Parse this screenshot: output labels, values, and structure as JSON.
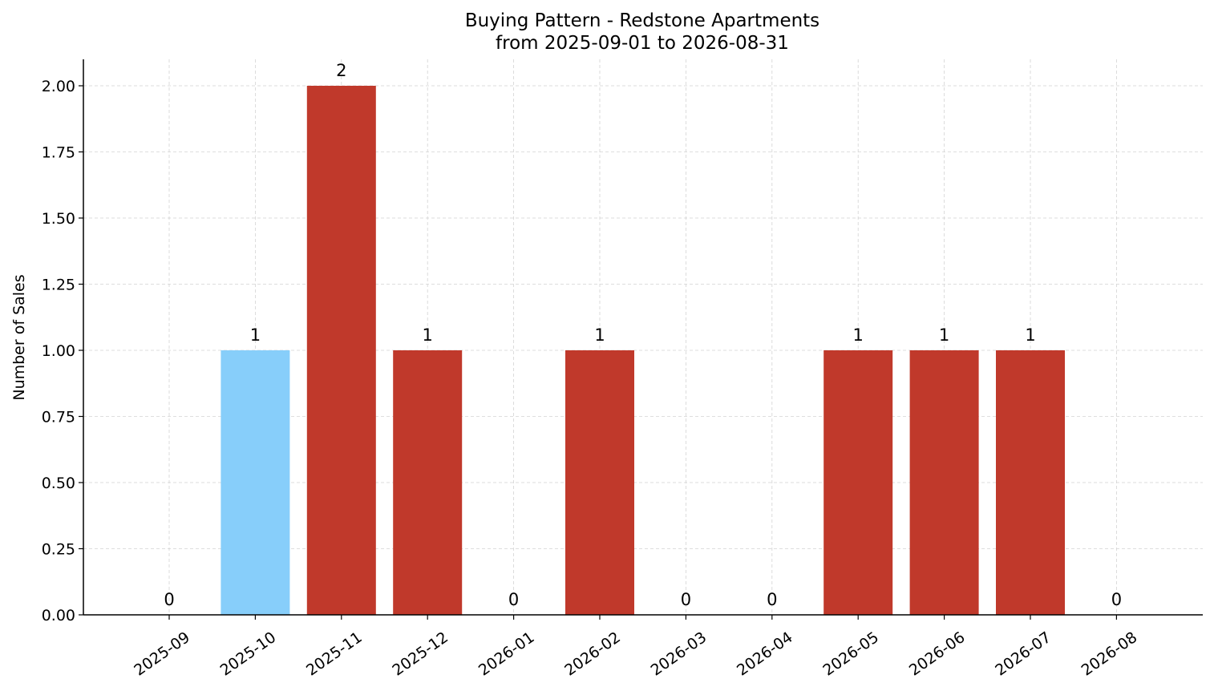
{
  "chart_data": {
    "type": "bar",
    "title": "Buying Pattern - Redstone Apartments",
    "subtitle": "from 2025-09-01 to 2026-08-31",
    "xlabel": "",
    "ylabel": "Number of Sales",
    "categories": [
      "2025-09",
      "2025-10",
      "2025-11",
      "2025-12",
      "2026-01",
      "2026-02",
      "2026-03",
      "2026-04",
      "2026-05",
      "2026-06",
      "2026-07",
      "2026-08"
    ],
    "values": [
      0,
      1,
      2,
      1,
      0,
      1,
      0,
      0,
      1,
      1,
      1,
      0
    ],
    "data_labels": [
      "0",
      "1",
      "2",
      "1",
      "0",
      "1",
      "0",
      "0",
      "1",
      "1",
      "1",
      "0"
    ],
    "bar_colors": [
      "#c0392b",
      "#87cefa",
      "#c0392b",
      "#c0392b",
      "#c0392b",
      "#c0392b",
      "#c0392b",
      "#c0392b",
      "#c0392b",
      "#c0392b",
      "#c0392b",
      "#c0392b"
    ],
    "yticks": [
      "0.00",
      "0.25",
      "0.50",
      "0.75",
      "1.00",
      "1.25",
      "1.50",
      "1.75",
      "2.00"
    ],
    "ylim": [
      0,
      2.1
    ],
    "grid": true,
    "legend": "none",
    "colors": {
      "highlight": "#87cefa",
      "default": "#c0392b",
      "grid": "#d3d3d3",
      "axis": "#000000"
    }
  }
}
